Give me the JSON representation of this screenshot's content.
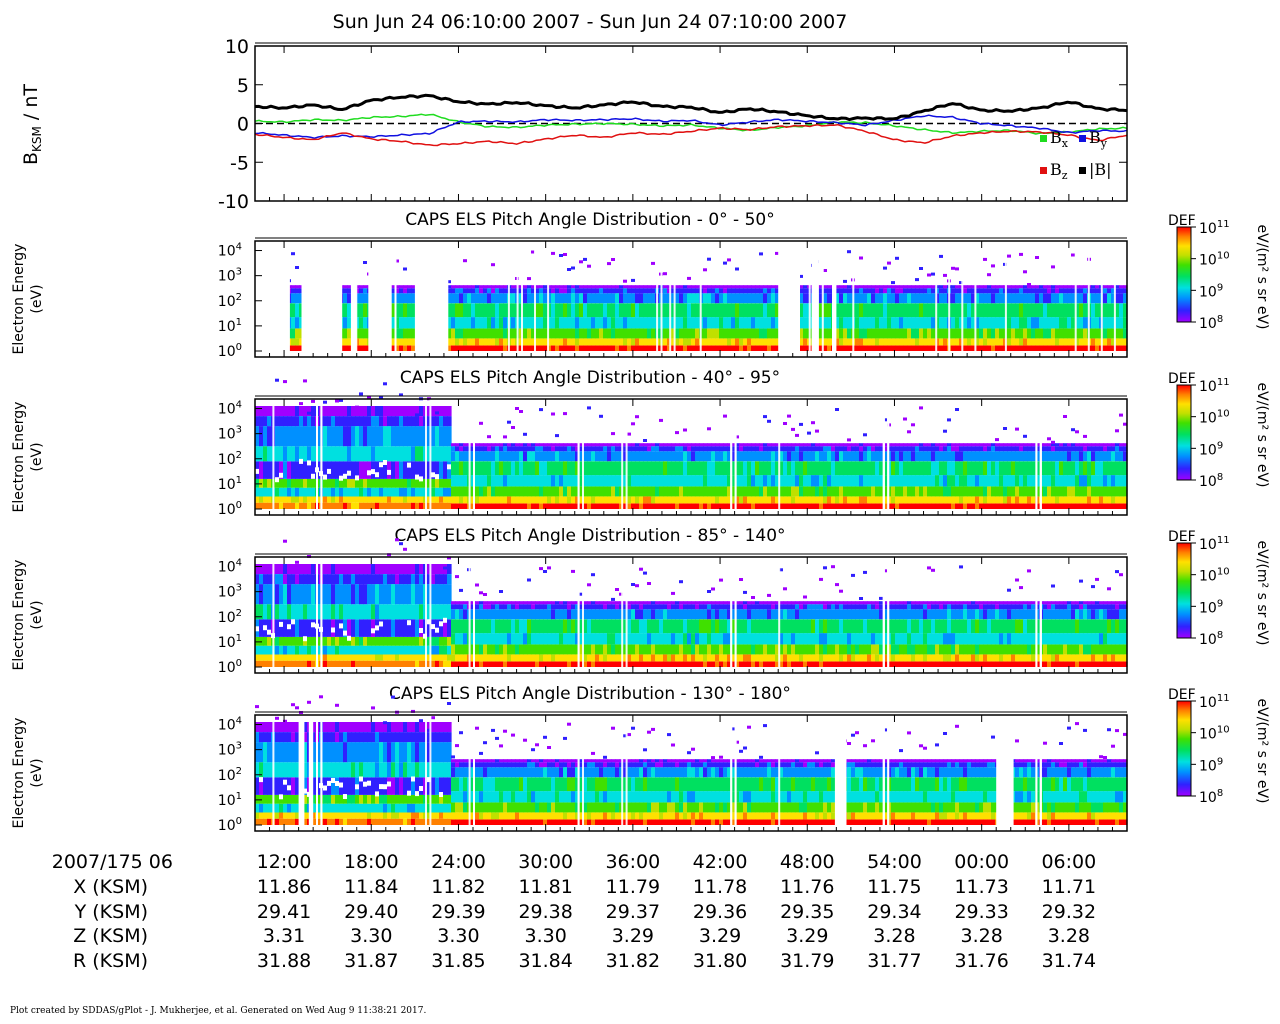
{
  "title": "Sun Jun 24 06:10:00 2007 - Sun Jun 24 07:10:00 2007",
  "footer": "Plot created by SDDAS/gPlot - J. Mukherjee, et al.  Generated on Wed Aug 9 11:38:21 2017.",
  "colors": {
    "bx": "#1fdc1f",
    "by": "#1010e0",
    "bz": "#e01010",
    "bmag": "#000000",
    "colormap": [
      "#a000ff",
      "#3020ff",
      "#0090ff",
      "#00e0e0",
      "#00e060",
      "#40e000",
      "#c0e000",
      "#ffe000",
      "#ff8000",
      "#ff0000"
    ]
  },
  "chart_data": [
    {
      "type": "line",
      "ylabel_main": "B",
      "ylabel_sub": "KSM",
      "ylabel_rest": " / nT",
      "ylim": [
        -10,
        10
      ],
      "yticks": [
        "10",
        "5",
        "0",
        "-5",
        "-10"
      ],
      "xlim_minutes": [
        10,
        70
      ],
      "legend": {
        "placement": "bottom-right",
        "items": [
          {
            "main": "B",
            "sub": "x",
            "color_key": "bx"
          },
          {
            "main": "B",
            "sub": "y",
            "color_key": "by"
          },
          {
            "main": "B",
            "sub": "z",
            "color_key": "bz"
          },
          {
            "main": "|B|",
            "sub": "",
            "color_key": "bmag"
          }
        ]
      },
      "x": [
        10,
        12,
        14,
        16,
        18,
        20,
        22,
        24,
        26,
        28,
        30,
        32,
        34,
        36,
        38,
        40,
        42,
        44,
        46,
        48,
        50,
        52,
        54,
        56,
        58,
        60,
        62,
        64,
        66,
        68,
        70
      ],
      "series": [
        {
          "key": "bx",
          "values": [
            0.3,
            0.2,
            0.5,
            0.4,
            0.8,
            0.9,
            1.2,
            0.2,
            -0.4,
            -0.5,
            -0.2,
            -0.1,
            0.0,
            -0.1,
            -0.3,
            -0.2,
            -0.6,
            -0.9,
            -0.5,
            -0.3,
            0.2,
            0.1,
            -0.3,
            -0.8,
            -1.2,
            -1.0,
            -0.9,
            -1.3,
            -1.1,
            -0.7,
            -0.6
          ]
        },
        {
          "key": "by",
          "values": [
            -1.2,
            -1.5,
            -1.8,
            -1.6,
            -1.7,
            -1.5,
            -1.3,
            0.2,
            0.3,
            0.2,
            0.5,
            0.4,
            0.5,
            0.6,
            0.3,
            0.4,
            -0.2,
            0.2,
            0.5,
            0.3,
            0.1,
            -0.2,
            0.4,
            1.0,
            0.8,
            0.0,
            -0.3,
            -0.6,
            -1.2,
            -0.9,
            -1.0
          ]
        },
        {
          "key": "bz",
          "values": [
            -1.4,
            -1.8,
            -2.1,
            -1.2,
            -2.0,
            -2.3,
            -2.8,
            -2.6,
            -2.3,
            -2.6,
            -2.0,
            -1.5,
            -1.8,
            -1.2,
            -1.4,
            -1.0,
            -0.6,
            -0.8,
            -0.4,
            -0.3,
            -0.2,
            -1.0,
            -2.1,
            -2.5,
            -1.6,
            -1.2,
            -1.0,
            -1.1,
            -1.5,
            -2.2,
            -1.5
          ]
        },
        {
          "key": "bmag",
          "values": [
            2.2,
            2.0,
            2.4,
            1.8,
            3.0,
            3.4,
            3.6,
            2.8,
            2.5,
            2.7,
            2.3,
            2.0,
            2.4,
            2.8,
            2.2,
            2.1,
            1.4,
            1.9,
            1.5,
            1.0,
            0.6,
            0.7,
            0.6,
            1.6,
            2.6,
            1.7,
            1.6,
            2.0,
            2.8,
            1.9,
            1.7
          ]
        }
      ]
    },
    {
      "type": "heatmap",
      "title": "CAPS ELS Pitch Angle Distribution - 0° - 50°",
      "ylabel_line1": "Electron Energy",
      "ylabel_line2": "(eV)",
      "yticks_exp": [
        "4",
        "3",
        "2",
        "1",
        "0"
      ],
      "colorbar": {
        "label": "DEF",
        "units": "eV/(m² s sr eV)",
        "ticks_exp": [
          "11",
          "10",
          "9",
          "8"
        ],
        "range_log": [
          8,
          11
        ]
      },
      "gaps": [
        [
          10.0,
          12.4
        ],
        [
          13.2,
          16.0
        ],
        [
          16.6,
          17.0
        ],
        [
          17.8,
          19.4
        ],
        [
          21.0,
          23.3
        ],
        [
          46.0,
          47.5
        ],
        [
          48.3,
          48.8
        ],
        [
          49.7,
          50.0
        ]
      ],
      "slices": [
        0.16,
        0.3,
        0.46,
        0.62,
        0.78,
        0.94
      ]
    },
    {
      "type": "heatmap",
      "title": "CAPS ELS Pitch Angle Distribution - 40° - 95°",
      "ylabel_line1": "Electron Energy",
      "ylabel_line2": "(eV)",
      "yticks_exp": [
        "4",
        "3",
        "2",
        "1",
        "0"
      ],
      "colorbar": {
        "label": "DEF",
        "units": "eV/(m² s sr eV)",
        "ticks_exp": [
          "11",
          "10",
          "9",
          "8"
        ],
        "range_log": [
          8,
          11
        ]
      },
      "gaps": [],
      "slices": [
        0.02,
        0.2,
        0.37,
        0.55,
        0.72,
        0.9
      ]
    },
    {
      "type": "heatmap",
      "title": "CAPS ELS Pitch Angle Distribution - 85° - 140°",
      "ylabel_line1": "Electron Energy",
      "ylabel_line2": "(eV)",
      "yticks_exp": [
        "4",
        "3",
        "2",
        "1",
        "0"
      ],
      "colorbar": {
        "label": "DEF",
        "units": "eV/(m² s sr eV)",
        "ticks_exp": [
          "11",
          "10",
          "9",
          "8"
        ],
        "range_log": [
          8,
          11
        ]
      },
      "gaps": [],
      "slices": [
        0.02,
        0.2,
        0.37,
        0.55,
        0.72,
        0.9
      ]
    },
    {
      "type": "heatmap",
      "title": "CAPS ELS Pitch Angle Distribution - 130° - 180°",
      "ylabel_line1": "Electron Energy",
      "ylabel_line2": "(eV)",
      "yticks_exp": [
        "4",
        "3",
        "2",
        "1",
        "0"
      ],
      "colorbar": {
        "label": "DEF",
        "units": "eV/(m² s sr eV)",
        "ticks_exp": [
          "11",
          "10",
          "9",
          "8"
        ],
        "range_log": [
          8,
          11
        ]
      },
      "gaps": [
        [
          13.0,
          13.4
        ],
        [
          13.7,
          14.0
        ],
        [
          49.9,
          50.7
        ],
        [
          61.0,
          62.2
        ]
      ],
      "slices": [
        0.02,
        0.2,
        0.37,
        0.55,
        0.72,
        0.9
      ]
    }
  ],
  "time_axis": {
    "start_label": "2007/175 06",
    "row_labels": [
      "X (KSM)",
      "Y (KSM)",
      "Z (KSM)",
      "R (KSM)"
    ],
    "ticks": [
      {
        "minute": 12,
        "label": "12:00",
        "x": "11.86",
        "y": "29.41",
        "z": "3.31",
        "r": "31.88"
      },
      {
        "minute": 18,
        "label": "18:00",
        "x": "11.84",
        "y": "29.40",
        "z": "3.30",
        "r": "31.87"
      },
      {
        "minute": 24,
        "label": "24:00",
        "x": "11.82",
        "y": "29.39",
        "z": "3.30",
        "r": "31.85"
      },
      {
        "minute": 30,
        "label": "30:00",
        "x": "11.81",
        "y": "29.38",
        "z": "3.30",
        "r": "31.84"
      },
      {
        "minute": 36,
        "label": "36:00",
        "x": "11.79",
        "y": "29.37",
        "z": "3.29",
        "r": "31.82"
      },
      {
        "minute": 42,
        "label": "42:00",
        "x": "11.78",
        "y": "29.36",
        "z": "3.29",
        "r": "31.80"
      },
      {
        "minute": 48,
        "label": "48:00",
        "x": "11.76",
        "y": "29.35",
        "z": "3.29",
        "r": "31.79"
      },
      {
        "minute": 54,
        "label": "54:00",
        "x": "11.75",
        "y": "29.34",
        "z": "3.28",
        "r": "31.77"
      },
      {
        "minute": 60,
        "label": "00:00",
        "x": "11.73",
        "y": "29.33",
        "z": "3.28",
        "r": "31.76"
      },
      {
        "minute": 66,
        "label": "06:00",
        "x": "11.71",
        "y": "29.32",
        "z": "3.28",
        "r": "31.74"
      }
    ]
  }
}
